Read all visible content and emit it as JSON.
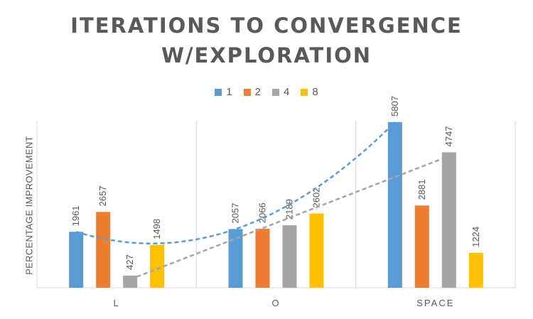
{
  "chart_data": {
    "type": "bar",
    "title_line1": "ITERATIONS TO CONVERGENCE",
    "title_line2": "W/EXPLORATION",
    "xlabel": "",
    "ylabel": "PERCENTAGE IMPROVEMENT",
    "categories": [
      "L",
      "O",
      "SPACE"
    ],
    "ylim": [
      0,
      6500
    ],
    "legend_position": "top",
    "series": [
      {
        "name": "1",
        "color": "#5B9BD5",
        "values": [
          1961,
          2057,
          5807
        ]
      },
      {
        "name": "2",
        "color": "#ED7D31",
        "values": [
          2657,
          2066,
          2881
        ]
      },
      {
        "name": "4",
        "color": "#A5A5A5",
        "values": [
          427,
          2189,
          4747
        ]
      },
      {
        "name": "8",
        "color": "#FFC000",
        "values": [
          1498,
          2602,
          1224
        ]
      }
    ],
    "trendlines": [
      {
        "series": "1",
        "type": "polynomial",
        "color": "#5B9BD5",
        "style": "dashed"
      },
      {
        "series": "4",
        "type": "linear",
        "color": "#A5A5A5",
        "style": "dashed"
      }
    ]
  }
}
